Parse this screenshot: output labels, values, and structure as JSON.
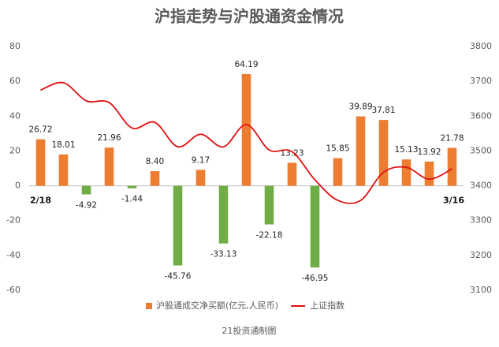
{
  "chart_data": {
    "type": "combo",
    "title": "沪指走势与沪股通资金情况",
    "source": "21投资通制图",
    "categories": [
      "2/18",
      null,
      null,
      null,
      null,
      null,
      null,
      null,
      null,
      null,
      null,
      null,
      null,
      null,
      null,
      null,
      null,
      null,
      "3/16"
    ],
    "series": [
      {
        "name": "沪股通成交净买额(亿元,人民币)",
        "type": "bar",
        "color": "#ed7d31",
        "negative_color": "#70ad47",
        "values": [
          26.72,
          18.01,
          -4.92,
          21.96,
          -1.44,
          8.4,
          -45.76,
          9.17,
          -33.13,
          64.19,
          -22.18,
          13.23,
          -46.95,
          15.85,
          39.89,
          37.81,
          15.13,
          13.92,
          21.78
        ],
        "value_labels": [
          "26.72",
          "18.01",
          "-4.92",
          "21.96",
          "-1.44",
          "8.40",
          "-45.76",
          "9.17",
          "-33.13",
          "64.19",
          "-22.18",
          "13.23",
          "-46.95",
          "15.85",
          "39.89",
          "37.81",
          "15.13",
          "13.92",
          "21.78"
        ]
      },
      {
        "name": "上证指数",
        "type": "line",
        "color": "#e01010",
        "axis": "y2",
        "values": [
          3675,
          3696,
          3644,
          3639,
          3566,
          3582,
          3512,
          3548,
          3512,
          3576,
          3503,
          3498,
          3417,
          3358,
          3358,
          3439,
          3453,
          3419,
          3449
        ]
      }
    ],
    "ylim": [
      -60,
      80
    ],
    "yticks": [
      -60,
      -40,
      -20,
      0,
      20,
      40,
      60,
      80
    ],
    "y2lim": [
      3100,
      3800
    ],
    "y2ticks": [
      3100,
      3200,
      3300,
      3400,
      3500,
      3600,
      3700,
      3800
    ],
    "grid": false,
    "legend": "bottom"
  }
}
